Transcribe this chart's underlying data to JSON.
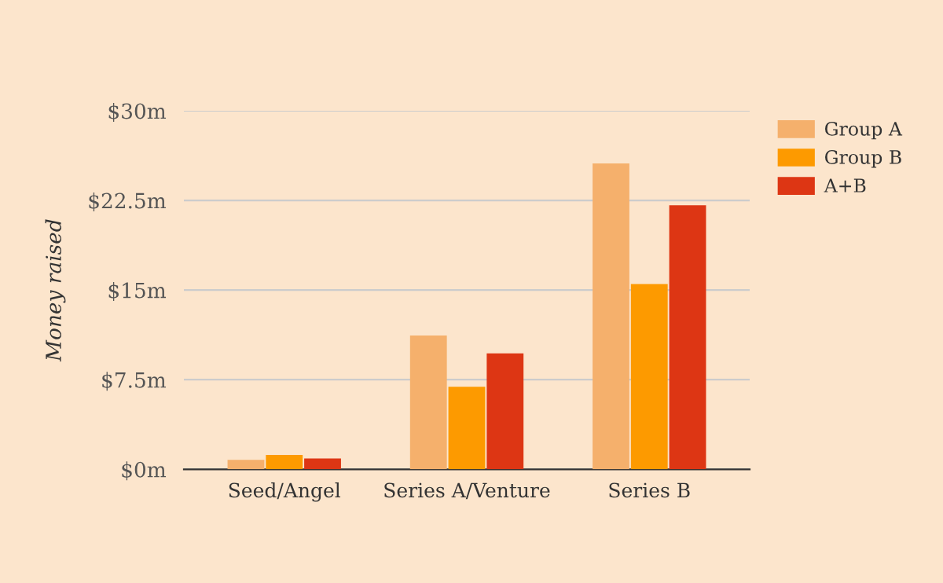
{
  "chart_data": {
    "type": "bar",
    "ylabel": "Money raised",
    "categories": [
      "Seed/Angel",
      "Series A/Venture",
      "Series B"
    ],
    "series": [
      {
        "name": "Group A",
        "color": "#f5b06c",
        "values": [
          0.8,
          11.2,
          25.6
        ]
      },
      {
        "name": "Group B",
        "color": "#fd9a00",
        "values": [
          1.2,
          6.9,
          15.5
        ]
      },
      {
        "name": "A+B",
        "color": "#dd3614",
        "values": [
          0.9,
          9.7,
          22.1
        ]
      }
    ],
    "ylim": [
      0,
      30
    ],
    "yticks": [
      {
        "value": 0,
        "label": "$0m"
      },
      {
        "value": 7.5,
        "label": "$7.5m"
      },
      {
        "value": 15,
        "label": "$15m"
      },
      {
        "value": 22.5,
        "label": "$22.5m"
      },
      {
        "value": 30,
        "label": "$30m"
      }
    ],
    "grid": "y",
    "legend": "top right"
  }
}
